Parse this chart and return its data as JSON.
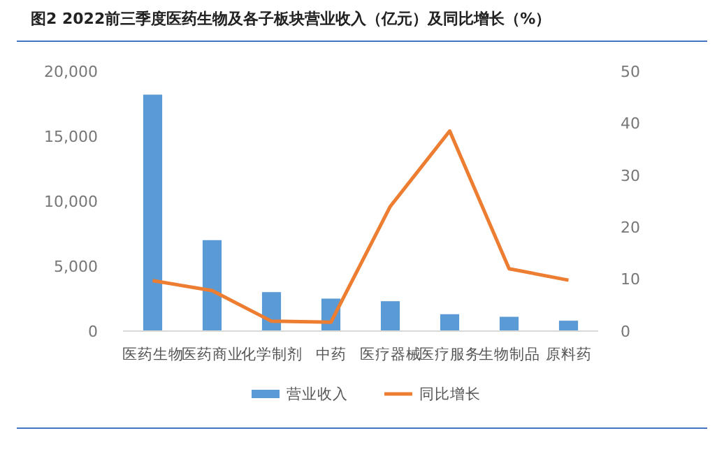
{
  "chart_data": {
    "type": "bar",
    "title": "图2 2022前三季度医药生物及各子板块营业收入（亿元）及同比增长（%）",
    "categories": [
      "医药生物",
      "医药商业",
      "化学制剂",
      "中药",
      "医疗器械",
      "医疗服务",
      "生物制品",
      "原料药"
    ],
    "series": [
      {
        "name": "营业收入",
        "color": "#5b9bd5",
        "values": [
          18200,
          7000,
          3000,
          2500,
          2300,
          1300,
          1100,
          800
        ]
      },
      {
        "name": "同比增长",
        "type": "line",
        "axis": "y2",
        "color": "#ed7d31",
        "values": [
          9.7,
          7.8,
          1.9,
          1.7,
          24,
          38.5,
          12,
          9.8
        ]
      }
    ],
    "ylim": [
      0,
      20000
    ],
    "yticks": [
      {
        "value": 0,
        "label": "0"
      },
      {
        "value": 5000,
        "label": "5,000"
      },
      {
        "value": 10000,
        "label": "10,000"
      },
      {
        "value": 15000,
        "label": "15,000"
      },
      {
        "value": 20000,
        "label": "20,000"
      }
    ],
    "y2lim": [
      0,
      50
    ],
    "y2ticks": [
      0,
      10,
      20,
      30,
      40,
      50
    ],
    "legend": "bottom",
    "grid": false,
    "marker": "none"
  }
}
